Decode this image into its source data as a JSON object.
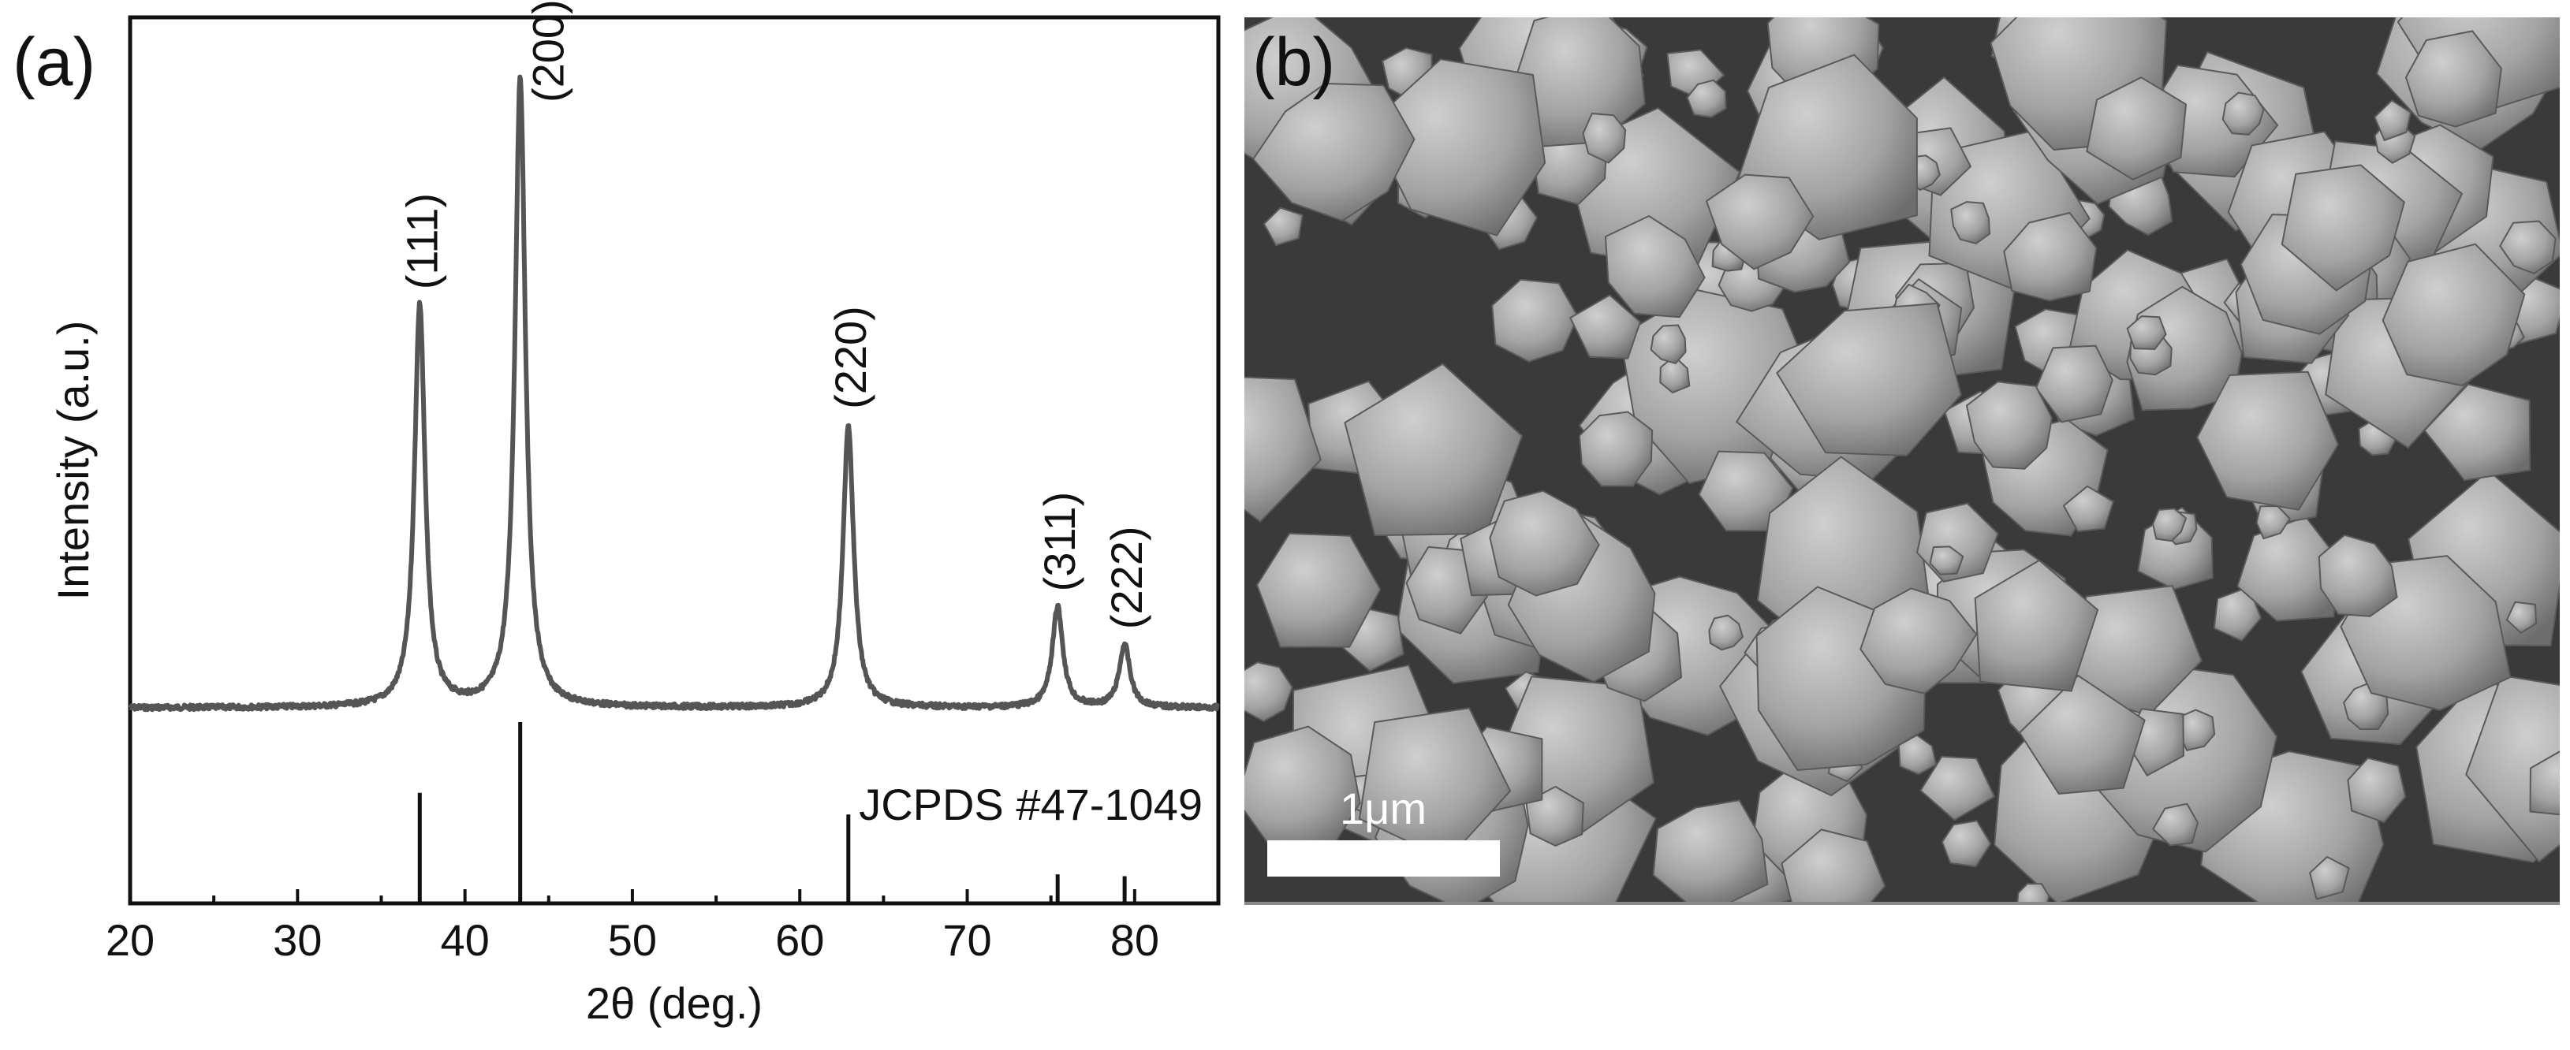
{
  "panels": {
    "a_label": "(a)",
    "b_label": "(b)"
  },
  "chart_data": {
    "type": "line",
    "xlabel": "2θ (deg.)",
    "ylabel": "Intensity (a.u.)",
    "xlim": [
      20,
      85
    ],
    "xticks": [
      "20",
      "30",
      "40",
      "50",
      "60",
      "70",
      "80"
    ],
    "yticks": "none",
    "grid": false,
    "series": [
      {
        "kind": "xrd-pattern",
        "baseline": 0.0,
        "peaks": [
          {
            "x": 37.3,
            "intensity": 0.64,
            "label": "(111)"
          },
          {
            "x": 43.3,
            "intensity": 1.0,
            "label": "(200)"
          },
          {
            "x": 62.9,
            "intensity": 0.45,
            "label": "(220)"
          },
          {
            "x": 75.4,
            "intensity": 0.16,
            "label": "(311)"
          },
          {
            "x": 79.4,
            "intensity": 0.1,
            "label": "(222)"
          }
        ]
      }
    ],
    "reference": {
      "label": "JCPDS #47-1049",
      "lines": [
        {
          "x": 37.3,
          "intensity": 0.61
        },
        {
          "x": 43.3,
          "intensity": 1.0
        },
        {
          "x": 62.9,
          "intensity": 0.49
        },
        {
          "x": 75.4,
          "intensity": 0.16
        },
        {
          "x": 79.4,
          "intensity": 0.15
        }
      ]
    }
  },
  "sem_image": {
    "scale_bar_label": "1μm"
  },
  "colors": {
    "pattern_line": "#555555",
    "axis": "#111111",
    "sem_bg": "#3a3a3a"
  }
}
